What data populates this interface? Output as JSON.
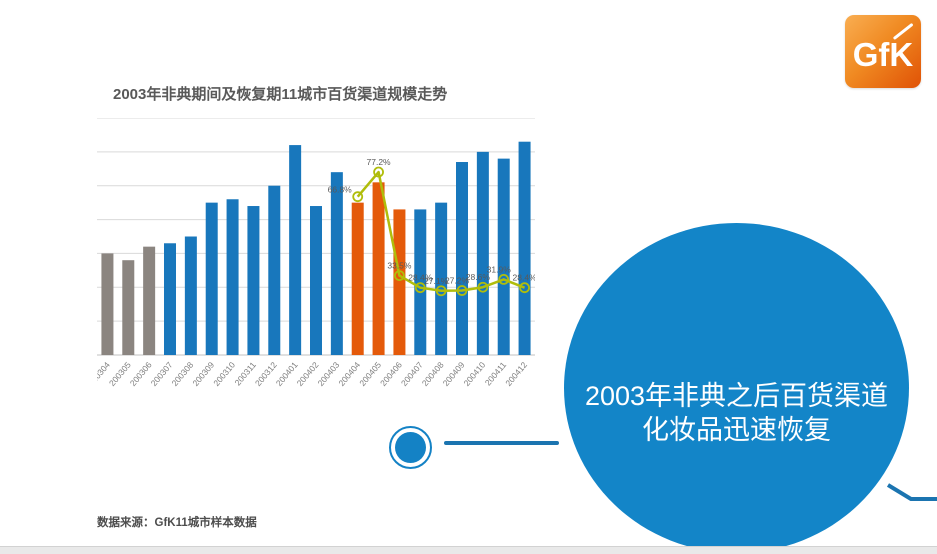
{
  "slide": {
    "chart_title": "2003年非典期间及恢复期11城市百货渠道规模走势",
    "source_note": "数据来源：GfK11城市样本数据",
    "callout_line1": "2003年非典之后百货渠道",
    "callout_line2": "化妆品迅速恢复",
    "logo_text": "GfK"
  },
  "colors": {
    "bar_blue": "#1877bc",
    "bar_gray": "#8b8580",
    "bar_orange": "#e45a0a",
    "line_olive": "#b0bd0b",
    "grid_line": "#d9d9d9",
    "axis_line": "#c0c0c0",
    "tick_text": "#808080",
    "label_text": "#595959",
    "callout_blue": "#1385c8",
    "connector_blue": "#1b74b0",
    "logo_orange": "#e05206",
    "footer_gray": "#e9e9e9"
  },
  "chart_data": {
    "type": "bar",
    "title": "2003年非典期间及恢复期11城市百货渠道规模走势",
    "xlabel": "",
    "ylabel": "",
    "y_axis_labels_visible": false,
    "grid": "horizontal",
    "grid_intervals": 7,
    "bar_axis_max": 7,
    "categories": [
      "200304",
      "200305",
      "200306",
      "200307",
      "200308",
      "200309",
      "200310",
      "200311",
      "200312",
      "200401",
      "200402",
      "200403",
      "200404",
      "200405",
      "200406",
      "200407",
      "200408",
      "200409",
      "200410",
      "200411",
      "200412"
    ],
    "bar_values_gridunits": [
      3.0,
      2.8,
      3.2,
      3.3,
      3.5,
      4.5,
      4.6,
      4.4,
      5.0,
      6.2,
      4.4,
      5.4,
      4.5,
      5.1,
      4.3,
      4.3,
      4.5,
      5.7,
      6.0,
      5.8,
      6.3
    ],
    "bar_color_keys": [
      "gray",
      "gray",
      "gray",
      "blue",
      "blue",
      "blue",
      "blue",
      "blue",
      "blue",
      "blue",
      "blue",
      "blue",
      "orange",
      "orange",
      "orange",
      "blue",
      "blue",
      "blue",
      "blue",
      "blue",
      "blue"
    ],
    "line_series": {
      "type": "line",
      "start_index": 12,
      "start_category": "200404",
      "axis_max": 100,
      "values": [
        66.8,
        77.2,
        33.5,
        28.4,
        27.1,
        27.2,
        28.6,
        31.9,
        28.4
      ],
      "labels": [
        "66.8%",
        "77.2%",
        "33.5%",
        "28.4%",
        "27.1%",
        "27.2%",
        "28.6%",
        "31.9%",
        "28.4%"
      ]
    }
  }
}
